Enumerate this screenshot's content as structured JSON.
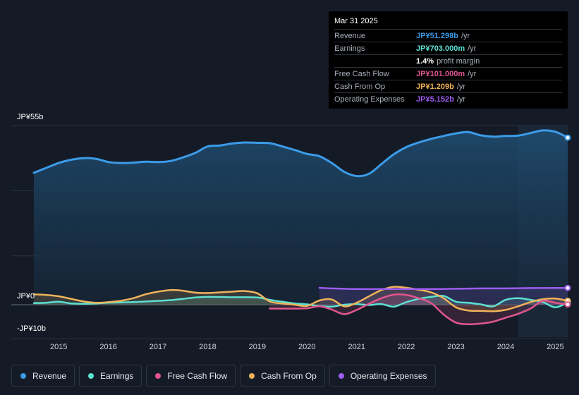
{
  "tooltip": {
    "date": "Mar 31 2025",
    "rows": [
      {
        "label": "Revenue",
        "value": "JP¥51.298b",
        "unit": "/yr",
        "color": "#3b9be8"
      },
      {
        "label": "Earnings",
        "value": "JP¥703.000m",
        "unit": "/yr",
        "color": "#5ce0d2"
      },
      {
        "label": "",
        "value": "1.4%",
        "unit": "profit margin",
        "color": "#ffffff"
      },
      {
        "label": "Free Cash Flow",
        "value": "JP¥101.000m",
        "unit": "/yr",
        "color": "#e0578e"
      },
      {
        "label": "Cash From Op",
        "value": "JP¥1.209b",
        "unit": "/yr",
        "color": "#f0b35a"
      },
      {
        "label": "Operating Expenses",
        "value": "JP¥5.152b",
        "unit": "/yr",
        "color": "#9d5cf0"
      }
    ]
  },
  "legend": [
    {
      "label": "Revenue",
      "color": "#3b9be8"
    },
    {
      "label": "Earnings",
      "color": "#5ce0d2"
    },
    {
      "label": "Free Cash Flow",
      "color": "#e0578e"
    },
    {
      "label": "Cash From Op",
      "color": "#f0b35a"
    },
    {
      "label": "Operating Expenses",
      "color": "#9d5cf0"
    }
  ],
  "chart_data": {
    "type": "area",
    "title": "",
    "xlabel": "",
    "ylabel": "",
    "unit": "JP¥b",
    "ylim": [
      -10,
      55
    ],
    "y_tick_labels": [
      "JP¥55b",
      "JP¥0",
      "-JP¥10b"
    ],
    "y_ticks": [
      55,
      0,
      -10
    ],
    "x_tick_labels": [
      "2015",
      "2016",
      "2017",
      "2018",
      "2019",
      "2020",
      "2021",
      "2022",
      "2023",
      "2024",
      "2025"
    ],
    "x_ticks": [
      2015,
      2016,
      2017,
      2018,
      2019,
      2020,
      2021,
      2022,
      2023,
      2024,
      2025
    ],
    "xlim": [
      2014.3,
      2025.25
    ],
    "forecast_start": 2024.25,
    "series": [
      {
        "name": "Revenue",
        "color": "#3b9be8",
        "x": [
          2014.5,
          2014.75,
          2015.0,
          2015.25,
          2015.5,
          2015.75,
          2016.0,
          2016.25,
          2016.5,
          2016.75,
          2017.0,
          2017.25,
          2017.5,
          2017.75,
          2018.0,
          2018.25,
          2018.5,
          2018.75,
          2019.0,
          2019.25,
          2019.5,
          2019.75,
          2020.0,
          2020.25,
          2020.5,
          2020.75,
          2021.0,
          2021.25,
          2021.5,
          2021.75,
          2022.0,
          2022.25,
          2022.5,
          2022.75,
          2023.0,
          2023.25,
          2023.5,
          2023.75,
          2024.0,
          2024.25,
          2024.5,
          2024.75,
          2025.0,
          2025.25
        ],
        "values": [
          40.5,
          42.0,
          43.5,
          44.5,
          45.0,
          44.8,
          43.8,
          43.5,
          43.6,
          43.9,
          43.8,
          44.1,
          45.2,
          46.6,
          48.6,
          48.9,
          49.5,
          49.8,
          49.7,
          49.6,
          48.6,
          47.5,
          46.3,
          45.6,
          43.5,
          40.8,
          39.5,
          40.2,
          43.2,
          46.2,
          48.4,
          49.8,
          50.9,
          51.8,
          52.6,
          53.0,
          52.0,
          51.6,
          51.8,
          51.9,
          52.7,
          53.5,
          53.1,
          51.3
        ]
      },
      {
        "name": "Earnings",
        "color": "#5ce0d2",
        "x": [
          2014.5,
          2014.75,
          2015.0,
          2015.25,
          2015.5,
          2015.75,
          2016.0,
          2016.5,
          2017.0,
          2017.25,
          2017.5,
          2017.75,
          2018.0,
          2018.5,
          2019.0,
          2019.25,
          2019.5,
          2019.75,
          2020.0,
          2020.25,
          2020.5,
          2020.75,
          2021.0,
          2021.25,
          2021.5,
          2021.75,
          2022.0,
          2022.25,
          2022.5,
          2022.75,
          2023.0,
          2023.25,
          2023.5,
          2023.75,
          2024.0,
          2024.25,
          2024.5,
          2024.75,
          2025.0,
          2025.25
        ],
        "values": [
          0.5,
          0.6,
          0.9,
          0.4,
          0.3,
          0.4,
          0.6,
          0.8,
          1.2,
          1.4,
          1.8,
          2.2,
          2.4,
          2.3,
          2.2,
          1.5,
          0.9,
          0.4,
          0.1,
          -0.4,
          -0.6,
          0.0,
          0.2,
          -0.1,
          0.2,
          -0.6,
          0.8,
          1.8,
          2.4,
          2.7,
          0.9,
          0.6,
          0.1,
          -0.5,
          1.5,
          2.0,
          1.5,
          0.8,
          -0.8,
          0.7
        ]
      },
      {
        "name": "Free Cash Flow",
        "color": "#e0578e",
        "x": [
          2019.25,
          2019.5,
          2019.75,
          2020.0,
          2020.25,
          2020.5,
          2020.75,
          2021.0,
          2021.25,
          2021.5,
          2021.75,
          2022.0,
          2022.25,
          2022.5,
          2022.75,
          2023.0,
          2023.25,
          2023.5,
          2023.75,
          2024.0,
          2024.25,
          2024.5,
          2024.75,
          2025.0,
          2025.25
        ],
        "values": [
          -1.2,
          -1.2,
          -1.2,
          -1.1,
          -0.5,
          -1.5,
          -2.9,
          -1.6,
          0.3,
          2.0,
          3.1,
          3.0,
          2.0,
          0.5,
          -3.0,
          -5.5,
          -6.0,
          -5.8,
          -5.2,
          -4.0,
          -2.8,
          -1.2,
          1.2,
          0.6,
          0.1
        ]
      },
      {
        "name": "Cash From Op",
        "color": "#f0b35a",
        "x": [
          2014.5,
          2014.75,
          2015.0,
          2015.25,
          2015.5,
          2015.75,
          2016.0,
          2016.25,
          2016.5,
          2016.75,
          2017.0,
          2017.25,
          2017.5,
          2017.75,
          2018.0,
          2018.25,
          2018.5,
          2018.75,
          2019.0,
          2019.25,
          2019.5,
          2019.75,
          2020.0,
          2020.25,
          2020.5,
          2020.75,
          2021.0,
          2021.25,
          2021.5,
          2021.75,
          2022.0,
          2022.25,
          2022.5,
          2022.75,
          2023.0,
          2023.25,
          2023.5,
          2023.75,
          2024.0,
          2024.25,
          2024.5,
          2024.75,
          2025.0,
          2025.25
        ],
        "values": [
          3.2,
          3.0,
          2.6,
          1.8,
          1.0,
          0.6,
          0.8,
          1.2,
          2.0,
          3.2,
          4.0,
          4.5,
          4.3,
          3.7,
          3.6,
          3.8,
          4.0,
          4.2,
          3.5,
          1.0,
          0.4,
          0.0,
          -0.4,
          1.3,
          1.6,
          -0.5,
          0.6,
          2.6,
          4.5,
          5.5,
          5.2,
          4.6,
          3.8,
          2.0,
          -0.8,
          -1.8,
          -1.9,
          -2.0,
          -1.6,
          -0.5,
          0.8,
          1.7,
          1.9,
          1.2
        ]
      },
      {
        "name": "Operating Expenses",
        "color": "#9d5cf0",
        "x": [
          2020.25,
          2020.5,
          2020.75,
          2021.0,
          2021.5,
          2022.0,
          2022.5,
          2023.0,
          2023.5,
          2024.0,
          2024.5,
          2025.0,
          2025.25
        ],
        "values": [
          5.2,
          5.0,
          4.9,
          4.8,
          4.8,
          4.8,
          4.8,
          4.9,
          5.0,
          5.0,
          5.1,
          5.15,
          5.15
        ]
      }
    ]
  }
}
